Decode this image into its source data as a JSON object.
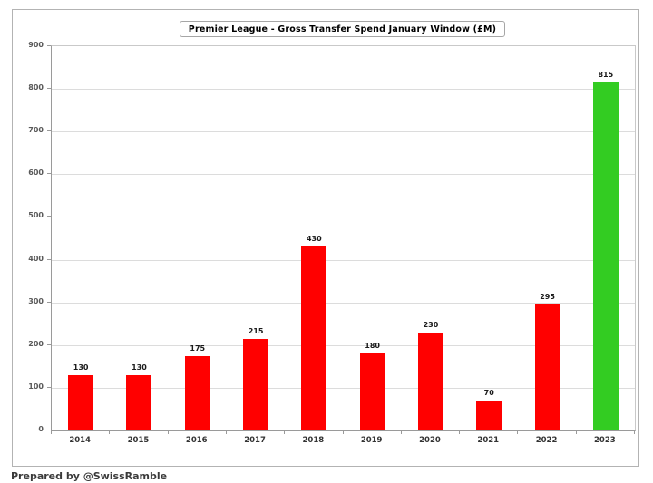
{
  "chart_data": {
    "type": "bar",
    "title": "Premier League - Gross Transfer Spend January Window (£M)",
    "categories": [
      "2014",
      "2015",
      "2016",
      "2017",
      "2018",
      "2019",
      "2020",
      "2021",
      "2022",
      "2023"
    ],
    "values": [
      130,
      130,
      175,
      215,
      430,
      180,
      230,
      70,
      295,
      815
    ],
    "bar_colors": [
      "#ff0000",
      "#ff0000",
      "#ff0000",
      "#ff0000",
      "#ff0000",
      "#ff0000",
      "#ff0000",
      "#ff0000",
      "#ff0000",
      "#33cc22"
    ],
    "data_labels": [
      "130",
      "130",
      "175",
      "215",
      "430",
      "180",
      "230",
      "70",
      "295",
      "815"
    ],
    "xlabel": "",
    "ylabel": "",
    "ylim": [
      0,
      900
    ],
    "ytick_step": 100,
    "yticks": [
      0,
      100,
      200,
      300,
      400,
      500,
      600,
      700,
      800,
      900
    ],
    "grid": "horizontal",
    "legend_position": "none"
  },
  "colors": {
    "bar_red": "#ff0000",
    "bar_highlight_green": "#33cc22",
    "gridline": "#dcdcdc",
    "axis": "#9a9a9a",
    "frame_border": "#b3b3b3"
  },
  "footer": {
    "credit": "Prepared by @SwissRamble"
  }
}
